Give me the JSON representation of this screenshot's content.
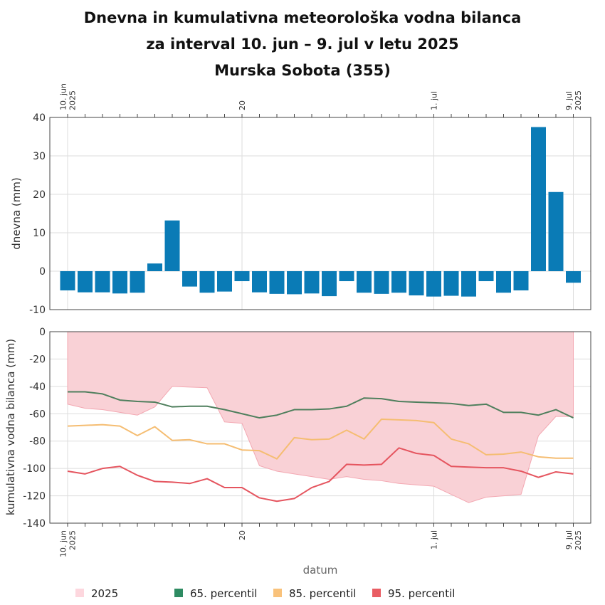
{
  "title": {
    "line1": "Dnevna in kumulativna meteorološka vodna bilanca",
    "line2": "za interval 10. jun – 9. jul v letu 2025",
    "line3": "Murska Sobota (355)"
  },
  "colors": {
    "bars": "#0a7bb6",
    "band_fill": "#f9d1d6",
    "band_stroke": "#f3a8b2",
    "p65": "#4f7f5d",
    "p85": "#f5bd72",
    "p95": "#e5555f",
    "legend_2025": "#fdd7de",
    "legend_65": "#2e8b62",
    "legend_85": "#f9c27b",
    "legend_95": "#e95d63"
  },
  "x_ticks": [
    {
      "day": 0,
      "lines": [
        "10. jun",
        "2025"
      ]
    },
    {
      "day": 10,
      "lines": [
        "20"
      ]
    },
    {
      "day": 21,
      "lines": [
        "1. jul"
      ]
    },
    {
      "day": 29,
      "lines": [
        "9. jul",
        "2025"
      ]
    }
  ],
  "chart_data": [
    {
      "type": "bar",
      "ylabel": "dnevna (mm)",
      "ylim": [
        -10,
        40
      ],
      "yticks": [
        -10,
        0,
        10,
        20,
        30,
        40
      ],
      "x": [
        "10. jun",
        "11. jun",
        "12. jun",
        "13. jun",
        "14. jun",
        "15. jun",
        "16. jun",
        "17. jun",
        "18. jun",
        "19. jun",
        "20. jun",
        "21. jun",
        "22. jun",
        "23. jun",
        "24. jun",
        "25. jun",
        "26. jun",
        "27. jun",
        "28. jun",
        "29. jun",
        "30. jun",
        "1. jul",
        "2. jul",
        "3. jul",
        "4. jul",
        "5. jul",
        "6. jul",
        "7. jul",
        "8. jul",
        "9. jul"
      ],
      "values": [
        -5.0,
        -5.5,
        -5.5,
        -5.8,
        -5.6,
        2.0,
        13.2,
        -4.0,
        -5.6,
        -5.3,
        -2.6,
        -5.5,
        -5.9,
        -6.0,
        -5.8,
        -6.5,
        -2.6,
        -5.6,
        -5.9,
        -5.6,
        -6.3,
        -6.6,
        -6.4,
        -6.6,
        -2.6,
        -5.6,
        -5.0,
        37.5,
        20.6,
        -3.0
      ]
    },
    {
      "type": "line",
      "xlabel": "datum",
      "ylabel": "kumulativna vodna bilanca (mm)",
      "ylim": [
        -140,
        0
      ],
      "yticks": [
        -140,
        -120,
        -100,
        -80,
        -60,
        -40,
        -20,
        0
      ],
      "x": [
        "10. jun",
        "11. jun",
        "12. jun",
        "13. jun",
        "14. jun",
        "15. jun",
        "16. jun",
        "17. jun",
        "18. jun",
        "19. jun",
        "20. jun",
        "21. jun",
        "22. jun",
        "23. jun",
        "24. jun",
        "25. jun",
        "26. jun",
        "27. jun",
        "28. jun",
        "29. jun",
        "30. jun",
        "1. jul",
        "2. jul",
        "3. jul",
        "4. jul",
        "5. jul",
        "6. jul",
        "7. jul",
        "8. jul",
        "9. jul"
      ],
      "series": [
        {
          "name": "2025",
          "kind": "area",
          "values": [
            -53,
            -56,
            -57,
            -59,
            -61,
            -55,
            -40,
            -40.5,
            -41,
            -66,
            -67,
            -98,
            -102,
            -104,
            -106,
            -108,
            -106,
            -108,
            -109,
            -111,
            -112,
            -113,
            -119,
            -125,
            -121,
            -120,
            -119,
            -76,
            -62,
            -62
          ]
        },
        {
          "name": "65. percentil",
          "values": [
            -44,
            -44,
            -45.5,
            -50,
            -51,
            -51.5,
            -55,
            -54.5,
            -54.5,
            -57,
            -60,
            -63,
            -61,
            -57,
            -57,
            -56.5,
            -54.5,
            -48.5,
            -49,
            -51,
            -51.5,
            -52,
            -52.5,
            -54,
            -53,
            -59,
            -59,
            -61,
            -57,
            -63
          ]
        },
        {
          "name": "85. percentil",
          "values": [
            -69,
            -68.5,
            -68,
            -69,
            -76,
            -69.5,
            -79.5,
            -79,
            -82,
            -82,
            -86.5,
            -87,
            -93,
            -77.5,
            -79,
            -78.5,
            -72,
            -78.5,
            -64,
            -64.5,
            -65,
            -66.5,
            -78.5,
            -82,
            -90,
            -89.5,
            -88,
            -91.5,
            -92.5,
            -92.5
          ]
        },
        {
          "name": "95. percentil",
          "values": [
            -102,
            -104,
            -100,
            -98.5,
            -105,
            -109.5,
            -110,
            -111,
            -107.5,
            -114,
            -114,
            -121.5,
            -124,
            -122,
            -114,
            -109.5,
            -97,
            -97.5,
            -97,
            -85,
            -89,
            -90.5,
            -98.5,
            -99,
            -99.5,
            -99.5,
            -102,
            -106.5,
            -102.5,
            -104
          ]
        }
      ]
    }
  ],
  "legend": {
    "items": [
      "2025",
      "65. percentil",
      "85. percentil",
      "95. percentil"
    ]
  }
}
